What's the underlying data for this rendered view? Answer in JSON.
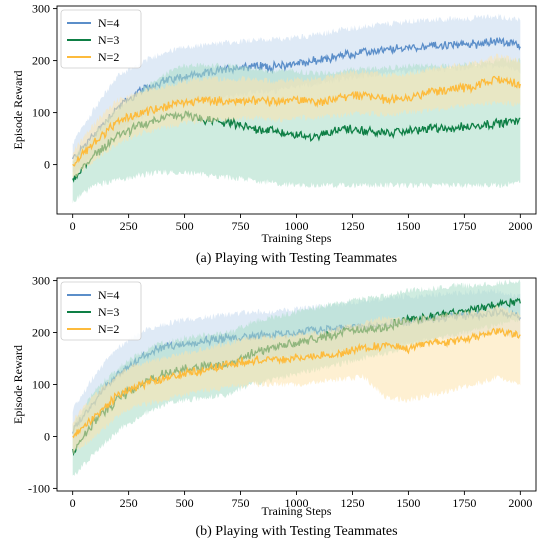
{
  "chart_data": [
    {
      "type": "line",
      "caption": "(a) Playing with Testing Teammates",
      "xlabel": "Training Steps",
      "ylabel": "Episode Reward",
      "xlim": [
        -70,
        2070
      ],
      "ylim": [
        -95,
        305
      ],
      "xticks": [
        0,
        250,
        500,
        750,
        1000,
        1250,
        1500,
        1750,
        2000
      ],
      "yticks": [
        0,
        100,
        200,
        300
      ],
      "legend": "top-left",
      "grid": false,
      "series": [
        {
          "name": "N=4",
          "color": "#5b8ec9",
          "band_color": "#c5d9ee",
          "x": [
            0,
            100,
            200,
            300,
            400,
            500,
            600,
            700,
            800,
            900,
            1000,
            1100,
            1200,
            1300,
            1400,
            1500,
            1600,
            1700,
            1800,
            1900,
            2000
          ],
          "mean": [
            10,
            60,
            110,
            140,
            160,
            170,
            175,
            185,
            190,
            188,
            195,
            200,
            210,
            215,
            220,
            225,
            228,
            230,
            232,
            238,
            228
          ],
          "lower": [
            -20,
            20,
            60,
            90,
            110,
            120,
            125,
            130,
            140,
            140,
            150,
            155,
            165,
            170,
            175,
            180,
            182,
            185,
            187,
            190,
            180
          ],
          "upper": [
            40,
            110,
            170,
            195,
            215,
            225,
            230,
            235,
            240,
            240,
            245,
            250,
            260,
            265,
            270,
            275,
            278,
            280,
            282,
            285,
            280
          ]
        },
        {
          "name": "N=3",
          "color": "#0e7f45",
          "band_color": "#a8dcc6",
          "x": [
            0,
            100,
            200,
            300,
            400,
            500,
            600,
            700,
            800,
            900,
            1000,
            1100,
            1200,
            1300,
            1400,
            1500,
            1600,
            1700,
            1800,
            1900,
            2000
          ],
          "mean": [
            -30,
            20,
            55,
            75,
            90,
            95,
            85,
            80,
            70,
            65,
            55,
            55,
            70,
            65,
            60,
            65,
            70,
            70,
            75,
            80,
            85
          ],
          "lower": [
            -70,
            -40,
            -30,
            -20,
            -15,
            -15,
            -20,
            -25,
            -30,
            -35,
            -40,
            -40,
            -40,
            -40,
            -40,
            -40,
            -40,
            -40,
            -40,
            -40,
            -35
          ],
          "upper": [
            10,
            60,
            110,
            140,
            170,
            190,
            190,
            190,
            185,
            180,
            180,
            175,
            180,
            185,
            185,
            190,
            190,
            190,
            195,
            200,
            200
          ]
        },
        {
          "name": "N=2",
          "color": "#fdbb3c",
          "band_color": "#fde3ad",
          "x": [
            0,
            100,
            200,
            300,
            400,
            500,
            600,
            700,
            800,
            900,
            1000,
            1100,
            1200,
            1300,
            1400,
            1500,
            1600,
            1700,
            1800,
            1900,
            2000
          ],
          "mean": [
            0,
            45,
            80,
            100,
            110,
            120,
            125,
            120,
            125,
            120,
            125,
            120,
            130,
            135,
            125,
            130,
            140,
            145,
            150,
            165,
            155
          ],
          "lower": [
            -25,
            10,
            40,
            60,
            70,
            80,
            85,
            85,
            90,
            85,
            90,
            90,
            95,
            100,
            95,
            100,
            105,
            110,
            115,
            120,
            115
          ],
          "upper": [
            25,
            80,
            125,
            140,
            150,
            160,
            165,
            165,
            165,
            160,
            165,
            165,
            175,
            180,
            170,
            175,
            185,
            190,
            195,
            210,
            200
          ]
        }
      ]
    },
    {
      "type": "line",
      "caption": "(b) Playing with Testing Teammates",
      "xlabel": "Training Steps",
      "ylabel": "Episode Reward",
      "xlim": [
        -70,
        2070
      ],
      "ylim": [
        -105,
        305
      ],
      "xticks": [
        0,
        250,
        500,
        750,
        1000,
        1250,
        1500,
        1750,
        2000
      ],
      "yticks": [
        -100,
        0,
        100,
        200,
        300
      ],
      "legend": "top-left",
      "grid": false,
      "series": [
        {
          "name": "N=4",
          "color": "#5b8ec9",
          "band_color": "#c5d9ee",
          "x": [
            0,
            100,
            200,
            300,
            400,
            500,
            600,
            700,
            800,
            900,
            1000,
            1100,
            1200,
            1300,
            1400,
            1500,
            1600,
            1700,
            1800,
            1900,
            2000
          ],
          "mean": [
            10,
            70,
            120,
            150,
            170,
            180,
            185,
            190,
            195,
            195,
            200,
            205,
            210,
            210,
            215,
            220,
            225,
            230,
            235,
            240,
            230
          ],
          "lower": [
            -30,
            20,
            70,
            100,
            120,
            130,
            135,
            140,
            150,
            150,
            155,
            160,
            165,
            170,
            175,
            180,
            185,
            190,
            195,
            200,
            190
          ],
          "upper": [
            50,
            120,
            170,
            200,
            215,
            225,
            230,
            235,
            240,
            240,
            245,
            250,
            255,
            260,
            265,
            270,
            272,
            275,
            278,
            280,
            270
          ]
        },
        {
          "name": "N=3",
          "color": "#0e7f45",
          "band_color": "#a8dcc6",
          "x": [
            0,
            100,
            200,
            300,
            400,
            500,
            600,
            700,
            800,
            900,
            1000,
            1100,
            1200,
            1300,
            1400,
            1500,
            1600,
            1700,
            1800,
            1900,
            2000
          ],
          "mean": [
            -30,
            30,
            70,
            100,
            120,
            130,
            135,
            140,
            160,
            170,
            180,
            190,
            200,
            205,
            210,
            225,
            230,
            240,
            245,
            255,
            262
          ],
          "lower": [
            -80,
            -30,
            10,
            40,
            60,
            70,
            75,
            80,
            100,
            110,
            120,
            130,
            140,
            150,
            160,
            175,
            185,
            195,
            205,
            215,
            225
          ],
          "upper": [
            20,
            90,
            130,
            160,
            180,
            190,
            195,
            200,
            220,
            230,
            240,
            250,
            260,
            265,
            270,
            280,
            285,
            290,
            290,
            295,
            300
          ]
        },
        {
          "name": "N=2",
          "color": "#fdbb3c",
          "band_color": "#fde3ad",
          "x": [
            0,
            100,
            200,
            300,
            400,
            500,
            600,
            700,
            800,
            900,
            1000,
            1100,
            1200,
            1300,
            1400,
            1500,
            1600,
            1700,
            1800,
            1900,
            2000
          ],
          "mean": [
            0,
            40,
            80,
            100,
            110,
            120,
            130,
            140,
            145,
            150,
            150,
            155,
            160,
            170,
            175,
            170,
            180,
            185,
            190,
            205,
            190
          ],
          "lower": [
            -30,
            0,
            40,
            60,
            70,
            80,
            90,
            95,
            100,
            100,
            100,
            105,
            110,
            115,
            75,
            70,
            80,
            90,
            100,
            115,
            100
          ],
          "upper": [
            30,
            80,
            120,
            140,
            150,
            160,
            170,
            180,
            190,
            190,
            195,
            200,
            210,
            220,
            230,
            225,
            230,
            235,
            240,
            250,
            235
          ]
        }
      ]
    }
  ]
}
